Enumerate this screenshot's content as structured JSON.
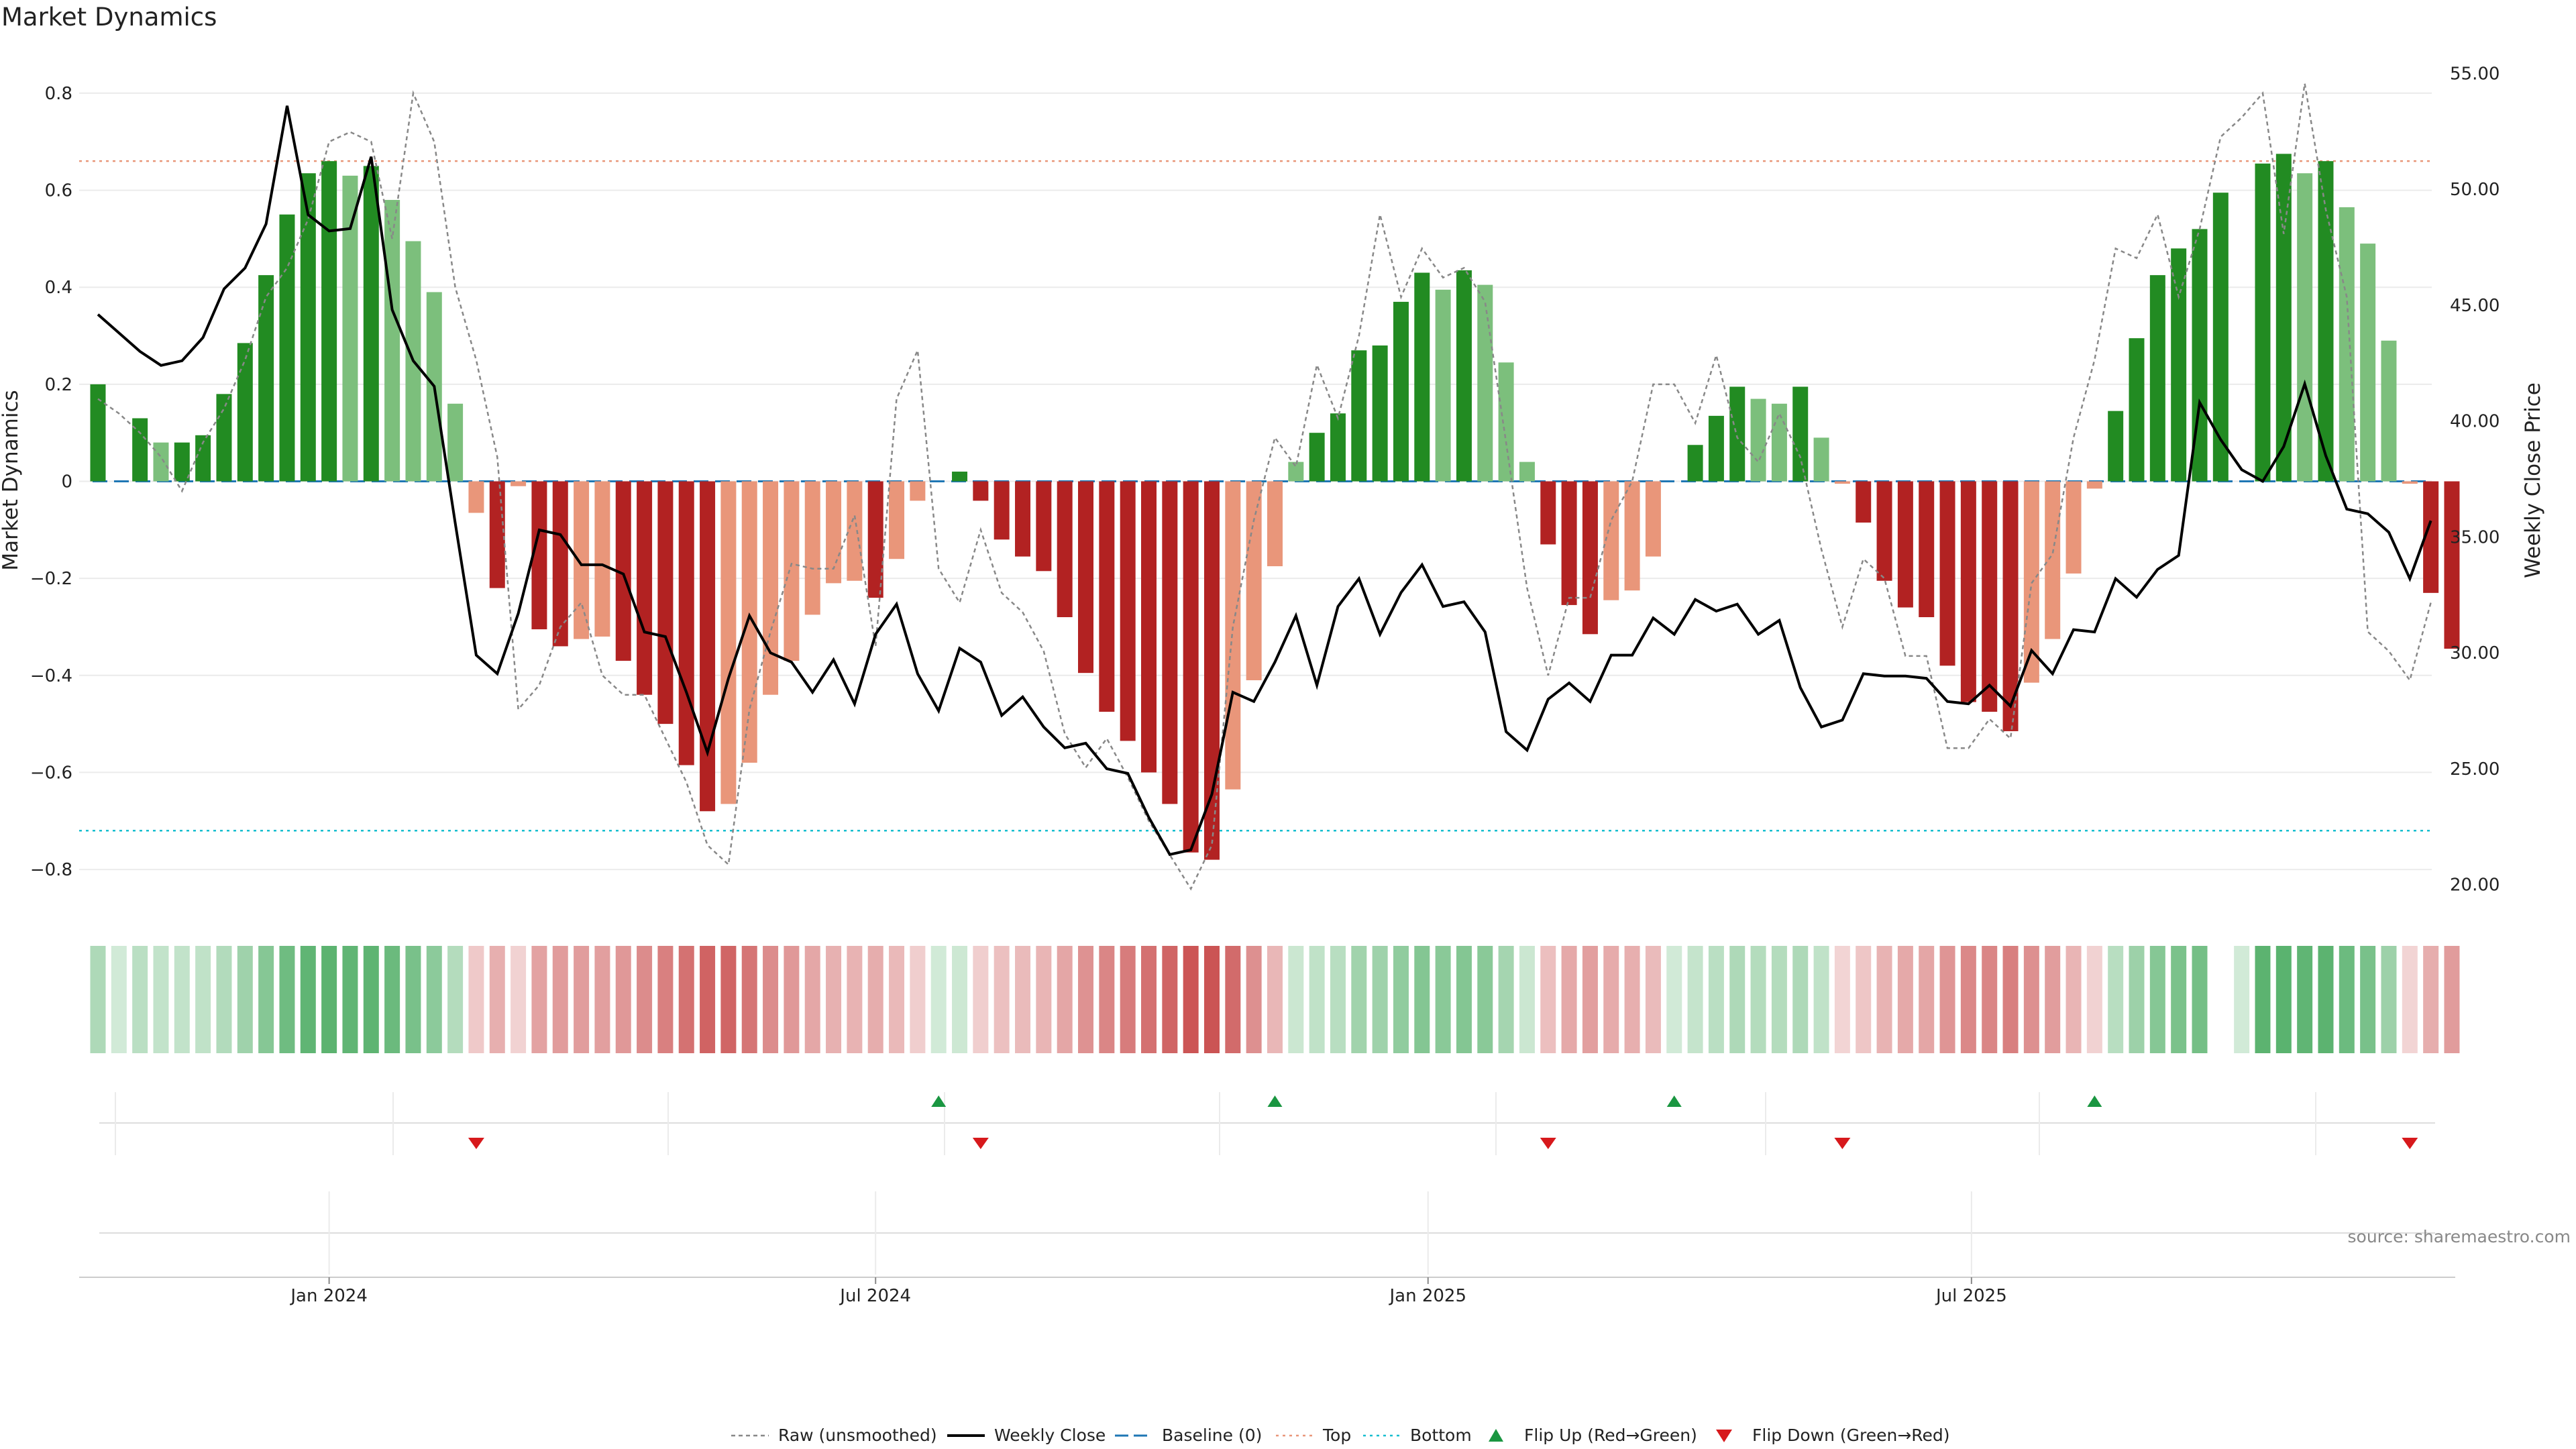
{
  "colors": {
    "strong_green": "#228B22",
    "light_green": "#7CBF7C",
    "strong_red": "#B22222",
    "light_red": "#E9967A",
    "close_line": "#000000",
    "raw_line": "#888888",
    "baseline": "#1f77b4",
    "top_line": "#E9967A",
    "bottom_line": "#17becf",
    "flip_up": "#1a9641",
    "flip_down": "#d7191c",
    "grid": "#ebebeb"
  },
  "chart_data": {
    "type": "bar",
    "title": "Market Dynamics",
    "ylabel": "Market Dynamics",
    "y2label": "Weekly Close Price",
    "ylim": [
      -0.84,
      0.84
    ],
    "y2lim": [
      19.5,
      55.5
    ],
    "yticks": [
      "0.8",
      "0.6",
      "0.4",
      "0.2",
      "0",
      "−0.2",
      "−0.4",
      "−0.6",
      "−0.8"
    ],
    "y2ticks": [
      "55.00",
      "50.00",
      "45.00",
      "40.00",
      "35.00",
      "30.00",
      "25.00",
      "20.00"
    ],
    "x_start": "2023-10-16",
    "x_end": "2025-11-03",
    "xticks": [
      {
        "date": "2024-01-01",
        "label": "Jan 2024"
      },
      {
        "date": "2024-07-01",
        "label": "Jul 2024"
      },
      {
        "date": "2025-01-01",
        "label": "Jan 2025"
      },
      {
        "date": "2025-07-01",
        "label": "Jul 2025"
      }
    ],
    "top_level": 0.66,
    "bottom_level": -0.72,
    "baseline": 0,
    "dynamics": [
      0.2,
      0.0,
      0.13,
      0.08,
      0.08,
      0.095,
      0.18,
      0.285,
      0.425,
      0.55,
      0.635,
      0.66,
      0.63,
      0.65,
      0.58,
      0.495,
      0.39,
      0.16,
      -0.065,
      -0.22,
      -0.01,
      -0.305,
      -0.34,
      -0.325,
      -0.32,
      -0.37,
      -0.44,
      -0.5,
      -0.585,
      -0.68,
      -0.665,
      -0.58,
      -0.44,
      -0.37,
      -0.275,
      -0.21,
      -0.205,
      -0.24,
      -0.16,
      -0.04,
      0.0,
      0.02,
      -0.04,
      -0.12,
      -0.155,
      -0.185,
      -0.28,
      -0.395,
      -0.475,
      -0.535,
      -0.6,
      -0.665,
      -0.765,
      -0.78,
      -0.635,
      -0.41,
      -0.175,
      0.04,
      0.1,
      0.14,
      0.27,
      0.28,
      0.37,
      0.43,
      0.395,
      0.435,
      0.405,
      0.245,
      0.04,
      -0.13,
      -0.255,
      -0.315,
      -0.245,
      -0.225,
      -0.155,
      0.0,
      0.075,
      0.135,
      0.195,
      0.17,
      0.16,
      0.195,
      0.09,
      -0.005,
      -0.085,
      -0.205,
      -0.26,
      -0.28,
      -0.38,
      -0.455,
      -0.475,
      -0.515,
      -0.415,
      -0.325,
      -0.19,
      -0.015,
      0.145,
      0.295,
      0.425,
      0.48,
      0.52,
      0.595,
      0.0,
      0.655,
      0.675,
      0.635,
      0.66,
      0.565,
      0.49,
      0.29,
      -0.005,
      -0.23,
      -0.345
    ],
    "raw": [
      0.17,
      0.14,
      0.1,
      0.05,
      -0.02,
      0.08,
      0.15,
      0.25,
      0.38,
      0.44,
      0.54,
      0.7,
      0.72,
      0.7,
      0.5,
      0.8,
      0.7,
      0.4,
      0.25,
      0.05,
      -0.47,
      -0.42,
      -0.3,
      -0.25,
      -0.4,
      -0.44,
      -0.44,
      -0.53,
      -0.62,
      -0.75,
      -0.79,
      -0.47,
      -0.31,
      -0.17,
      -0.18,
      -0.18,
      -0.07,
      -0.34,
      0.17,
      0.27,
      -0.18,
      -0.25,
      -0.1,
      -0.23,
      -0.27,
      -0.35,
      -0.52,
      -0.59,
      -0.53,
      -0.61,
      -0.7,
      -0.77,
      -0.84,
      -0.75,
      -0.3,
      -0.08,
      0.09,
      0.03,
      0.24,
      0.13,
      0.3,
      0.55,
      0.38,
      0.48,
      0.42,
      0.44,
      0.37,
      0.08,
      -0.22,
      -0.4,
      -0.24,
      -0.24,
      -0.08,
      0.0,
      0.2,
      0.2,
      0.12,
      0.26,
      0.09,
      0.04,
      0.14,
      0.05,
      -0.14,
      -0.3,
      -0.16,
      -0.2,
      -0.36,
      -0.36,
      -0.55,
      -0.55,
      -0.49,
      -0.53,
      -0.21,
      -0.15,
      0.09,
      0.25,
      0.48,
      0.46,
      0.55,
      0.38,
      0.52,
      0.71,
      0.75,
      0.8,
      0.51,
      0.82,
      0.56,
      0.38,
      -0.31,
      -0.35,
      -0.41,
      -0.25
    ],
    "close": [
      44.6,
      43.8,
      43.0,
      42.4,
      42.6,
      43.6,
      45.7,
      46.6,
      48.5,
      53.6,
      48.9,
      48.2,
      48.3,
      51.4,
      44.8,
      42.6,
      41.5,
      35.6,
      29.9,
      29.1,
      31.7,
      35.3,
      35.1,
      33.8,
      33.8,
      33.4,
      30.9,
      30.7,
      28.3,
      25.7,
      28.9,
      31.6,
      30.0,
      29.6,
      28.3,
      29.7,
      27.8,
      30.8,
      32.1,
      29.1,
      27.5,
      30.2,
      29.6,
      27.3,
      28.1,
      26.8,
      25.9,
      26.1,
      25.0,
      24.8,
      22.9,
      21.3,
      21.5,
      23.9,
      28.3,
      27.9,
      29.6,
      31.6,
      28.6,
      32.0,
      33.2,
      30.8,
      32.6,
      33.8,
      32.0,
      32.2,
      30.9,
      26.6,
      25.8,
      28.0,
      28.7,
      27.9,
      29.9,
      29.9,
      31.5,
      30.8,
      32.3,
      31.8,
      32.1,
      30.8,
      31.4,
      28.5,
      26.8,
      27.1,
      29.1,
      29.0,
      29.0,
      28.9,
      27.9,
      27.8,
      28.6,
      27.7,
      30.1,
      29.1,
      31.0,
      30.9,
      33.2,
      32.4,
      33.6,
      34.2,
      40.8,
      39.2,
      37.9,
      37.4,
      38.9,
      41.6,
      38.5,
      36.2,
      36.0,
      35.2,
      33.2,
      35.7
    ],
    "flip_up_indices": [
      40,
      56,
      75,
      95
    ],
    "flip_down_indices": [
      18,
      42,
      69,
      83,
      110
    ],
    "gap_after_index": 101
  },
  "legend": [
    {
      "key": "raw",
      "label": "Raw (unsmoothed)"
    },
    {
      "key": "close",
      "label": "Weekly Close"
    },
    {
      "key": "baseline",
      "label": "Baseline (0)"
    },
    {
      "key": "top",
      "label": "Top"
    },
    {
      "key": "bottom",
      "label": "Bottom"
    },
    {
      "key": "flip_up",
      "label": "Flip Up (Red→Green)"
    },
    {
      "key": "flip_down",
      "label": "Flip Down (Green→Red)"
    }
  ],
  "source_text": "source: sharemaestro.com"
}
